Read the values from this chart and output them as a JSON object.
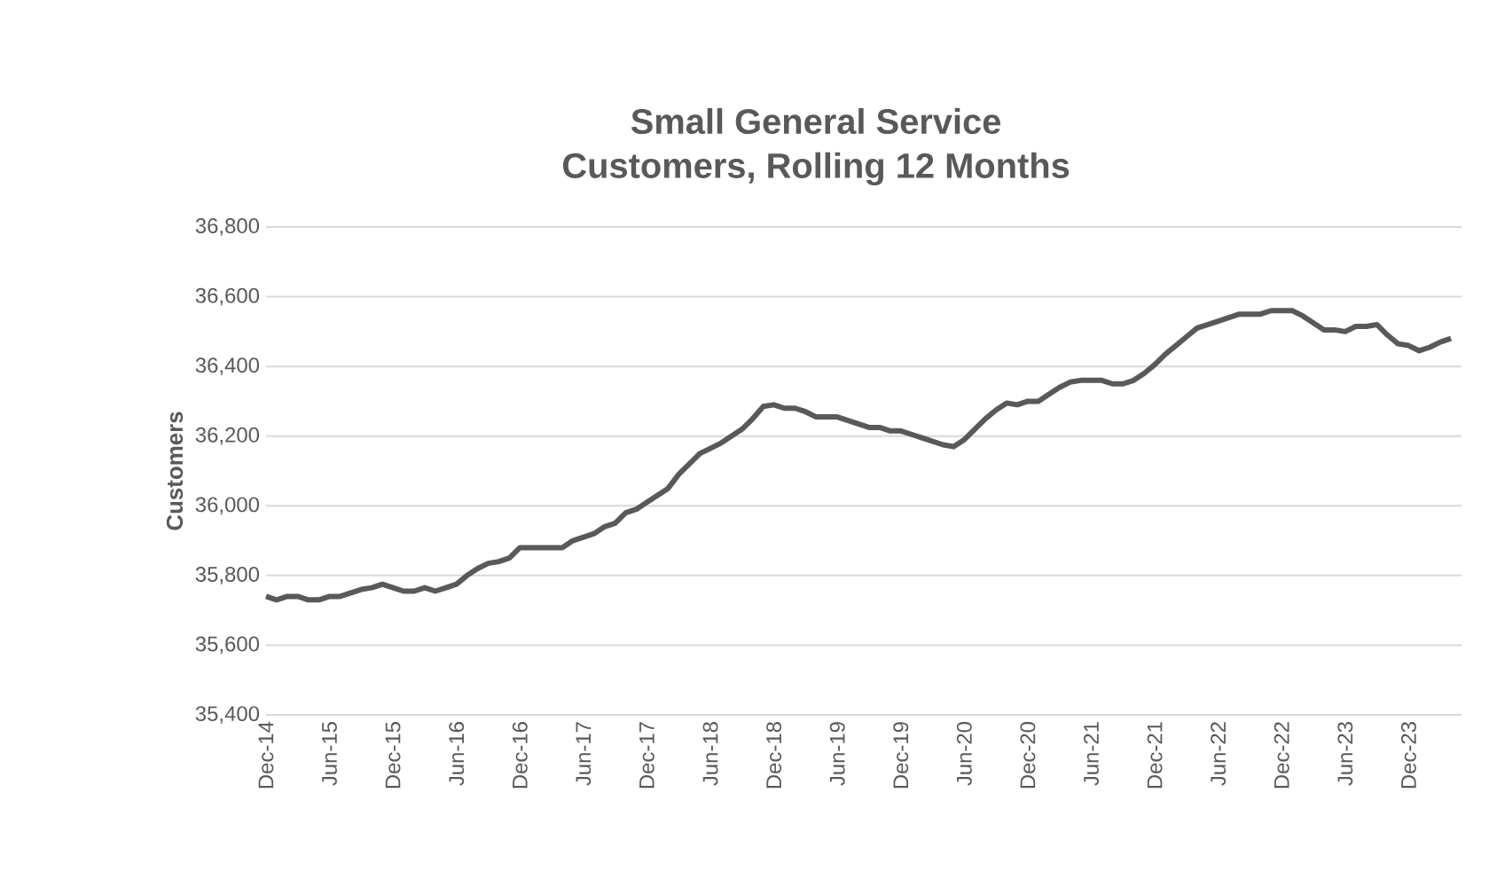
{
  "chart_data": {
    "type": "line",
    "title": "Small General Service\nCustomers, Rolling 12 Months",
    "ylabel": "Customers",
    "categories": [
      "Dec-14",
      null,
      null,
      null,
      null,
      null,
      "Jun-15",
      null,
      null,
      null,
      null,
      null,
      "Dec-15",
      null,
      null,
      null,
      null,
      null,
      "Jun-16",
      null,
      null,
      null,
      null,
      null,
      "Dec-16",
      null,
      null,
      null,
      null,
      null,
      "Jun-17",
      null,
      null,
      null,
      null,
      null,
      "Dec-17",
      null,
      null,
      null,
      null,
      null,
      "Jun-18",
      null,
      null,
      null,
      null,
      null,
      "Dec-18",
      null,
      null,
      null,
      null,
      null,
      "Jun-19",
      null,
      null,
      null,
      null,
      null,
      "Dec-19",
      null,
      null,
      null,
      null,
      null,
      "Jun-20",
      null,
      null,
      null,
      null,
      null,
      "Dec-20",
      null,
      null,
      null,
      null,
      null,
      "Jun-21",
      null,
      null,
      null,
      null,
      null,
      "Dec-21",
      null,
      null,
      null,
      null,
      null,
      "Jun-22",
      null,
      null,
      null,
      null,
      null,
      "Dec-22",
      null,
      null,
      null,
      null,
      null,
      "Jun-23",
      null,
      null,
      null,
      null,
      null,
      "Dec-23",
      null,
      null,
      null,
      null
    ],
    "series": [
      {
        "color": "#595959",
        "values": [
          35740,
          35730,
          35740,
          35740,
          35730,
          35730,
          35740,
          35740,
          35750,
          35760,
          35765,
          35775,
          35765,
          35755,
          35755,
          35765,
          35755,
          35765,
          35775,
          35800,
          35820,
          35835,
          35840,
          35850,
          35880,
          35880,
          35880,
          35880,
          35880,
          35900,
          35910,
          35920,
          35940,
          35950,
          35980,
          35990,
          36010,
          36030,
          36050,
          36090,
          36120,
          36150,
          36165,
          36180,
          36200,
          36220,
          36250,
          36285,
          36290,
          36280,
          36280,
          36270,
          36255,
          36255,
          36255,
          36245,
          36235,
          36225,
          36225,
          36215,
          36215,
          36205,
          36195,
          36185,
          36175,
          36170,
          36190,
          36220,
          36250,
          36275,
          36295,
          36290,
          36300,
          36300,
          36320,
          36340,
          36355,
          36360,
          36360,
          36360,
          36350,
          36350,
          36360,
          36380,
          36405,
          36435,
          36460,
          36485,
          36510,
          36520,
          36530,
          36540,
          36550,
          36550,
          36550,
          36560,
          36560,
          36560,
          36545,
          36525,
          36505,
          36505,
          36500,
          36515,
          36515,
          36520,
          36490,
          36465,
          36460,
          36445,
          36455,
          36470,
          36480
        ]
      }
    ],
    "ylim": [
      35400,
      36800
    ],
    "yticks": [
      {
        "value": 35400,
        "label": "35,400"
      },
      {
        "value": 35600,
        "label": "35,600"
      },
      {
        "value": 35800,
        "label": "35,800"
      },
      {
        "value": 36000,
        "label": "36,000"
      },
      {
        "value": 36200,
        "label": "36,200"
      },
      {
        "value": 36400,
        "label": "36,400"
      },
      {
        "value": 36600,
        "label": "36,600"
      },
      {
        "value": 36800,
        "label": "36,800"
      }
    ],
    "grid": "y",
    "legend": false,
    "marker": "none",
    "line_style": "solid"
  }
}
